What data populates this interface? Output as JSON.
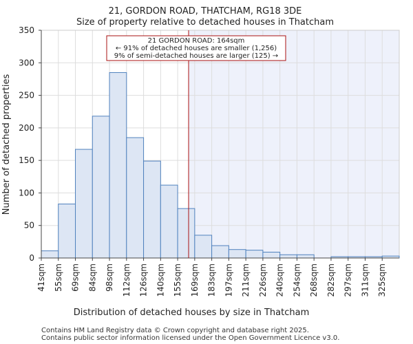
{
  "chart_data": {
    "type": "bar",
    "title": "21, GORDON ROAD, THATCHAM, RG18 3DE",
    "subtitle": "Size of property relative to detached houses in Thatcham",
    "xlabel": "Distribution of detached houses by size in Thatcham",
    "ylabel": "Number of detached properties",
    "ylim": [
      0,
      350
    ],
    "yticks": [
      0,
      50,
      100,
      150,
      200,
      250,
      300,
      350
    ],
    "categories": [
      "41sqm",
      "55sqm",
      "69sqm",
      "84sqm",
      "98sqm",
      "112sqm",
      "126sqm",
      "140sqm",
      "155sqm",
      "169sqm",
      "183sqm",
      "197sqm",
      "211sqm",
      "226sqm",
      "240sqm",
      "254sqm",
      "268sqm",
      "282sqm",
      "297sqm",
      "311sqm",
      "325sqm"
    ],
    "values": [
      11,
      83,
      167,
      218,
      285,
      185,
      149,
      112,
      76,
      35,
      19,
      13,
      12,
      9,
      5,
      5,
      0,
      2,
      2,
      2,
      3
    ],
    "marker": {
      "value": 164,
      "unit": "sqm",
      "color": "#aa1111",
      "label_line1": "21 GORDON ROAD: 164sqm",
      "label_line2": "← 91% of detached houses are smaller (1,256)",
      "label_line3": "9% of semi-detached houses are larger (125) →"
    },
    "colors": {
      "bar_fill": "#dde6f4",
      "bar_stroke": "#4f81bd",
      "highlight_region": "#eef1fb"
    },
    "grid": true
  },
  "footer": {
    "line1": "Contains HM Land Registry data © Crown copyright and database right 2025.",
    "line2": "Contains public sector information licensed under the Open Government Licence v3.0."
  }
}
